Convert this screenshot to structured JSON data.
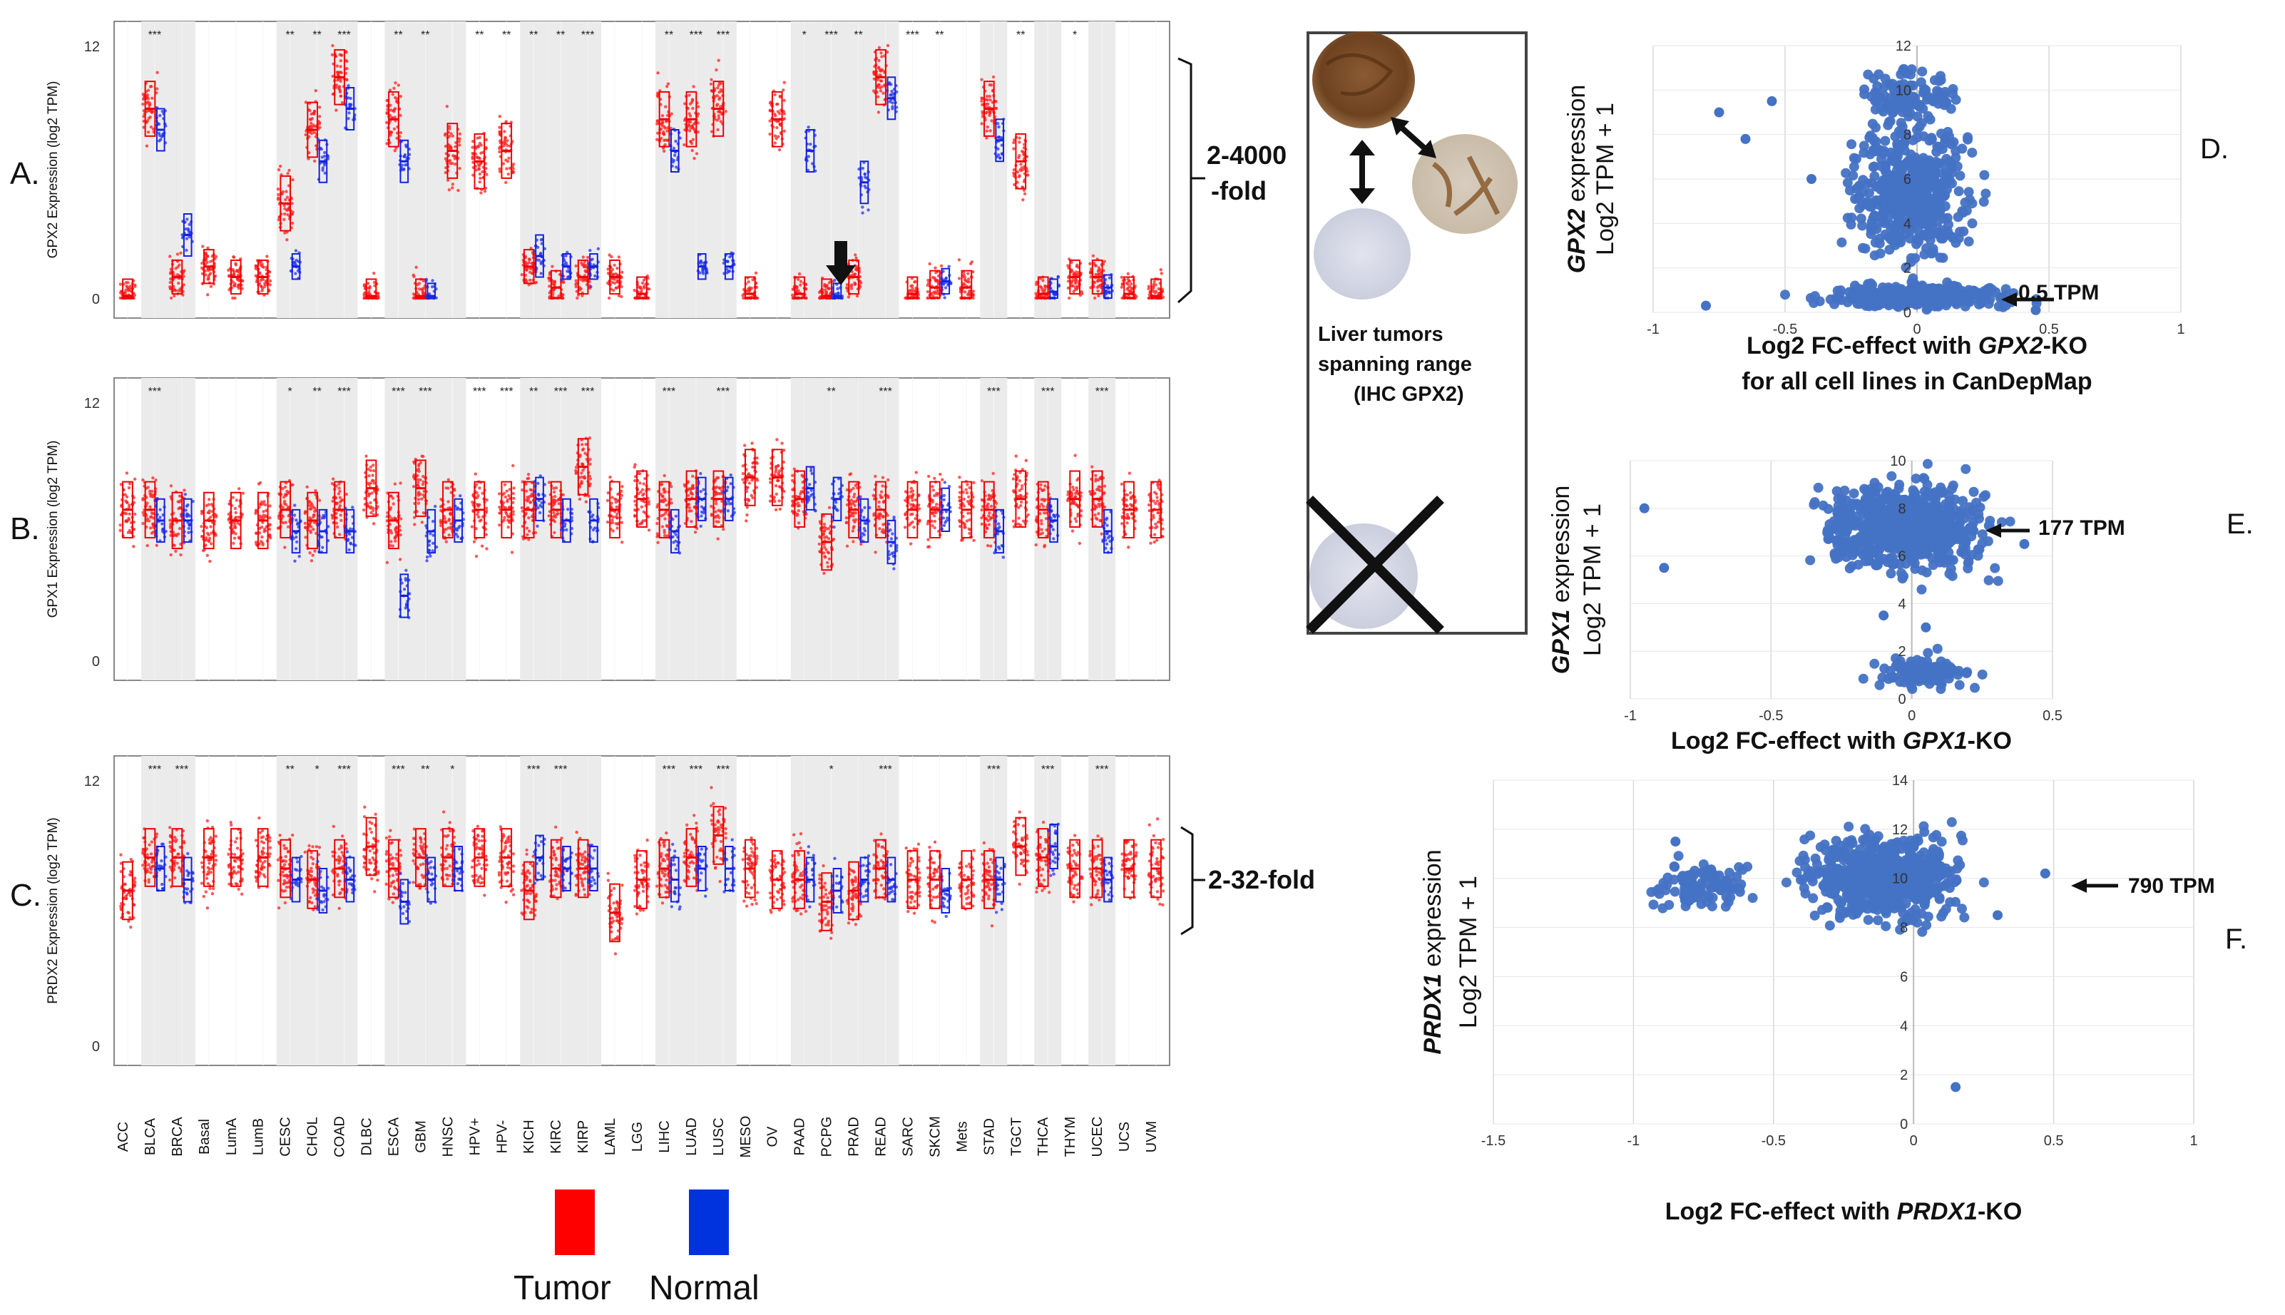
{
  "figure": {
    "panel_letters": [
      "A.",
      "B.",
      "C.",
      "D.",
      "E.",
      "F."
    ],
    "fold_A": [
      "2-4000",
      "-fold"
    ],
    "fold_C": "2-32-fold",
    "legend": {
      "tumor_label": "Tumor",
      "normal_label": "Normal",
      "tumor_color": "#ff0000",
      "normal_color": "#0033dd"
    },
    "ihc": {
      "caption": [
        "Liver tumors",
        "spanning range",
        "(IHC GPX2)"
      ]
    }
  },
  "chart_data": [
    {
      "type": "box",
      "panel": "A",
      "title": "",
      "ylabel": "GPX2 Expression (log2 TPM)",
      "ylim": [
        0,
        12
      ],
      "yticks": [
        "0",
        "12"
      ],
      "cancer_types": [
        "ACC",
        "BLCA",
        "BRCA",
        "Basal",
        "LumA",
        "LumB",
        "CESC",
        "CHOL",
        "COAD",
        "DLBC",
        "ESCA",
        "GBM",
        "HNSC",
        "HPV+",
        "HPV-",
        "KICH",
        "KIRC",
        "KIRP",
        "LAML",
        "LGG",
        "LIHC",
        "LUAD",
        "LUSC",
        "MESO",
        "OV",
        "PAAD",
        "PCPG",
        "PRAD",
        "READ",
        "SARC",
        "SKCM",
        "Mets",
        "STAD",
        "TGCT",
        "THCA",
        "THYM",
        "UCEC",
        "UCS",
        "UVM"
      ],
      "tumor_median": [
        0.1,
        9.0,
        1.0,
        1.5,
        1.0,
        1.0,
        4.5,
        8.0,
        10.5,
        0.1,
        8.5,
        0.1,
        7.0,
        6.5,
        7.0,
        1.5,
        0.5,
        1.0,
        1.0,
        0.2,
        8.5,
        8.5,
        9.0,
        0.2,
        8.5,
        0.2,
        0.1,
        1.0,
        10.5,
        0.2,
        0.5,
        0.5,
        9.0,
        6.5,
        0.2,
        1.0,
        1.0,
        0.2,
        0.1
      ],
      "normal_median": [
        null,
        8.0,
        3.0,
        null,
        null,
        null,
        1.5,
        6.5,
        9.0,
        null,
        6.5,
        0.1,
        null,
        null,
        null,
        2.0,
        1.5,
        1.5,
        null,
        null,
        7.0,
        1.5,
        1.5,
        null,
        null,
        7.0,
        0.1,
        5.5,
        9.5,
        null,
        0.8,
        null,
        7.5,
        null,
        0.3,
        null,
        0.5,
        null,
        null
      ],
      "significance": [
        "",
        "***",
        "",
        "",
        "",
        "",
        "**",
        "**",
        "***",
        "",
        "**",
        "**",
        "",
        "**",
        "**",
        "**",
        "**",
        "***",
        "",
        "",
        "**",
        "***",
        "***",
        "",
        "",
        "*",
        "***",
        "**",
        "",
        "***",
        "**",
        "",
        "",
        "**",
        "",
        "*",
        "",
        "",
        ""
      ]
    },
    {
      "type": "box",
      "panel": "B",
      "title": "",
      "ylabel": "GPX1 Expression (log2 TPM)",
      "ylim": [
        0,
        12
      ],
      "yticks": [
        "0",
        "12"
      ],
      "cancer_types": [
        "ACC",
        "BLCA",
        "BRCA",
        "Basal",
        "LumA",
        "LumB",
        "CESC",
        "CHOL",
        "COAD",
        "DLBC",
        "ESCA",
        "GBM",
        "HNSC",
        "HPV+",
        "HPV-",
        "KICH",
        "KIRC",
        "KIRP",
        "LAML",
        "LGG",
        "LIHC",
        "LUAD",
        "LUSC",
        "MESO",
        "OV",
        "PAAD",
        "PCPG",
        "PRAD",
        "READ",
        "SARC",
        "SKCM",
        "Mets",
        "STAD",
        "TGCT",
        "THCA",
        "THYM",
        "UCEC",
        "UCS",
        "UVM"
      ],
      "tumor_median": [
        7.0,
        7.0,
        6.5,
        6.5,
        6.5,
        6.5,
        7.0,
        6.5,
        7.0,
        8.0,
        6.5,
        8.0,
        7.0,
        7.0,
        7.0,
        7.0,
        7.0,
        9.0,
        7.0,
        7.5,
        7.0,
        7.5,
        7.5,
        8.5,
        8.5,
        7.5,
        5.5,
        7.0,
        7.0,
        7.0,
        7.0,
        7.0,
        7.0,
        7.5,
        7.0,
        7.5,
        7.5,
        7.0,
        7.0
      ],
      "normal_median": [
        null,
        6.5,
        6.5,
        null,
        null,
        null,
        6.0,
        6.0,
        6.0,
        null,
        3.0,
        6.0,
        6.5,
        null,
        null,
        7.5,
        6.5,
        6.5,
        null,
        null,
        6.0,
        7.5,
        7.5,
        null,
        null,
        8.0,
        7.5,
        6.5,
        5.5,
        null,
        7.0,
        null,
        6.0,
        null,
        6.5,
        null,
        6.0,
        null,
        null
      ],
      "significance": [
        "",
        "***",
        "",
        "",
        "",
        "",
        "*",
        "**",
        "***",
        "",
        "***",
        "***",
        "",
        "***",
        "***",
        "**",
        "***",
        "***",
        "",
        "",
        "***",
        "",
        "***",
        "",
        "",
        "",
        "**",
        "",
        "***",
        "",
        "",
        "",
        "***",
        "",
        "***",
        "",
        "***",
        "",
        ""
      ]
    },
    {
      "type": "box",
      "panel": "C",
      "title": "",
      "ylabel": "PRDX2 Expression (log2 TPM)",
      "ylim": [
        0,
        12
      ],
      "yticks": [
        "0",
        "12"
      ],
      "cancer_types": [
        "ACC",
        "BLCA",
        "BRCA",
        "Basal",
        "LumA",
        "LumB",
        "CESC",
        "CHOL",
        "COAD",
        "DLBC",
        "ESCA",
        "GBM",
        "HNSC",
        "HPV+",
        "HPV-",
        "KICH",
        "KIRC",
        "KIRP",
        "LAML",
        "LGG",
        "LIHC",
        "LUAD",
        "LUSC",
        "MESO",
        "OV",
        "PAAD",
        "PCPG",
        "PRAD",
        "READ",
        "SARC",
        "SKCM",
        "Mets",
        "STAD",
        "TGCT",
        "THCA",
        "THYM",
        "UCEC",
        "UCS",
        "UVM"
      ],
      "tumor_median": [
        7.0,
        8.5,
        8.5,
        8.5,
        8.5,
        8.5,
        8.0,
        7.5,
        8.0,
        9.0,
        8.0,
        8.5,
        8.5,
        8.5,
        8.5,
        7.0,
        8.0,
        8.0,
        6.0,
        7.5,
        8.0,
        8.5,
        9.5,
        8.0,
        7.5,
        7.5,
        6.5,
        7.0,
        8.0,
        7.5,
        7.5,
        7.5,
        7.5,
        9.0,
        8.5,
        8.0,
        8.0,
        8.0,
        8.0
      ],
      "normal_median": [
        null,
        8.0,
        7.5,
        null,
        null,
        null,
        7.5,
        7.0,
        7.5,
        null,
        6.5,
        7.5,
        8.0,
        null,
        null,
        8.5,
        8.0,
        8.0,
        null,
        null,
        7.5,
        8.0,
        8.0,
        null,
        null,
        7.5,
        7.0,
        7.5,
        7.5,
        null,
        7.0,
        null,
        7.5,
        null,
        9.0,
        null,
        7.5,
        null,
        null
      ],
      "significance": [
        "",
        "***",
        "***",
        "",
        "",
        "",
        "**",
        "*",
        "***",
        "",
        "***",
        "**",
        "*",
        "",
        "",
        "***",
        "***",
        "",
        "",
        "",
        "***",
        "***",
        "***",
        "",
        "",
        "",
        "*",
        "",
        "***",
        "",
        "",
        "",
        "***",
        "",
        "***",
        "",
        "***",
        "",
        ""
      ]
    },
    {
      "type": "scatter",
      "panel": "D",
      "ylabel_italic": "GPX2",
      "ylabel_rest": " expression",
      "ylabel2": "Log2 TPM + 1",
      "xlabel_parts": [
        "Log2 FC-effect with ",
        "GPX2",
        "-KO"
      ],
      "xlabel2": "for all cell lines in CanDepMap",
      "xlim": [
        -1,
        1
      ],
      "ylim": [
        0,
        12
      ],
      "xticks": [
        "-1",
        "-0.5",
        "0",
        "0.5",
        "1"
      ],
      "yticks": [
        "0",
        "2",
        "4",
        "6",
        "8",
        "10",
        "12"
      ],
      "annotation": "0.5 TPM",
      "clusters": [
        {
          "x": [
            -0.5,
            0.5
          ],
          "y": [
            0,
            1.5
          ],
          "n": 400
        },
        {
          "x": [
            -0.35,
            0.3
          ],
          "y": [
            1,
            10
          ],
          "n": 500
        },
        {
          "x": [
            -0.3,
            0.25
          ],
          "y": [
            8,
            11.5
          ],
          "n": 110
        }
      ],
      "outliers": [
        [
          -0.55,
          9.5
        ],
        [
          -0.65,
          7.8
        ],
        [
          -0.75,
          9.0
        ],
        [
          -0.4,
          6.0
        ],
        [
          0.45,
          0.1
        ],
        [
          -0.8,
          0.3
        ]
      ]
    },
    {
      "type": "scatter",
      "panel": "E",
      "ylabel_italic": "GPX1",
      "ylabel_rest": " expression",
      "ylabel2": "Log2 TPM + 1",
      "xlabel_parts": [
        "Log2 FC-effect with ",
        "GPX1",
        "-KO"
      ],
      "xlim": [
        -1,
        0.5
      ],
      "ylim": [
        0,
        10
      ],
      "xticks": [
        "-1",
        "-0.5",
        "0",
        "0.5"
      ],
      "yticks": [
        "0",
        "2",
        "4",
        "6",
        "8",
        "10"
      ],
      "annotation": "177 TPM",
      "clusters": [
        {
          "x": [
            -0.45,
            0.4
          ],
          "y": [
            4.5,
            10
          ],
          "n": 650
        },
        {
          "x": [
            -0.2,
            0.3
          ],
          "y": [
            0,
            2.2
          ],
          "n": 100
        }
      ],
      "outliers": [
        [
          -0.95,
          8.0
        ],
        [
          -0.88,
          5.5
        ],
        [
          0.4,
          6.5
        ],
        [
          -0.1,
          3.5
        ],
        [
          0.05,
          3.0
        ]
      ]
    },
    {
      "type": "scatter",
      "panel": "F",
      "ylabel_italic": "PRDX1",
      "ylabel_rest": " expression",
      "ylabel2": "Log2 TPM + 1",
      "xlabel_parts": [
        "Log2 FC-effect with ",
        "PRDX1",
        "-KO"
      ],
      "xlim": [
        -1.5,
        1
      ],
      "ylim": [
        0,
        14
      ],
      "xticks": [
        "-1.5",
        "-1",
        "-0.5",
        "0",
        "0.5",
        "1"
      ],
      "yticks": [
        "0",
        "2",
        "4",
        "6",
        "8",
        "10",
        "12",
        "14"
      ],
      "annotation": "790 TPM",
      "clusters": [
        {
          "x": [
            -0.5,
            0.3
          ],
          "y": [
            7.5,
            12.5
          ],
          "n": 650
        },
        {
          "x": [
            -1.0,
            -0.5
          ],
          "y": [
            8.5,
            11
          ],
          "n": 110
        }
      ],
      "outliers": [
        [
          -0.85,
          11.5
        ],
        [
          0.47,
          10.2
        ],
        [
          0.15,
          1.5
        ],
        [
          0.3,
          8.5
        ]
      ]
    }
  ]
}
